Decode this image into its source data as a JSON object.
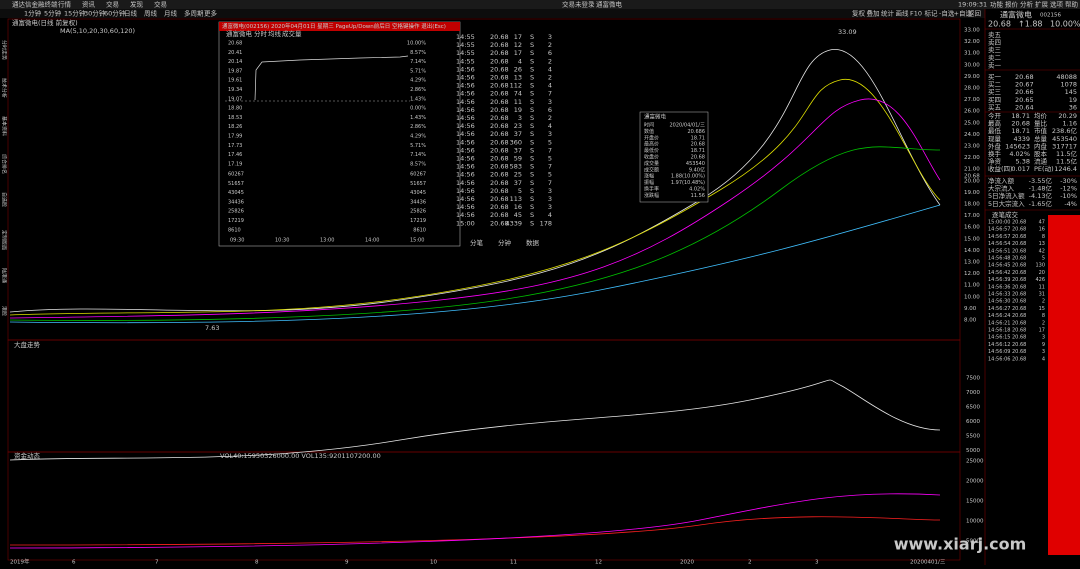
{
  "top_bar": {
    "app": "通达信金融终端",
    "menus": [
      "行情",
      "资讯",
      "交易",
      "发现",
      "交易"
    ],
    "status": "交易未登录",
    "stock": "通富微电",
    "clock": "19:09:31",
    "right_menus": [
      "功能",
      "报价",
      "分析",
      "扩展",
      "选项",
      "帮助"
    ]
  },
  "toolbar": {
    "periods": [
      "1分钟",
      "5分钟",
      "15分钟",
      "30分钟",
      "60分钟",
      "日线",
      "周线",
      "月线",
      "多周期",
      "更多"
    ],
    "right": [
      "复权",
      "叠加",
      "统计",
      "画线",
      "F10",
      "标记",
      "-自选",
      "+自选",
      "返回"
    ]
  },
  "sidebar": [
    "分时走势",
    "技术分析",
    "基本资料",
    "综合排名",
    "自选股",
    "定制版面",
    "陆港通",
    "港股"
  ],
  "chart": {
    "stock_line": "通富微电(日线 前复权)",
    "ma_line": "MA(5,10,20,30,60,120)",
    "high_mark": "33.09",
    "low_mark": "7.63",
    "y_ticks": [
      "33.00",
      "32.00",
      "31.00",
      "30.00",
      "29.00",
      "28.00",
      "27.00",
      "26.00",
      "25.00",
      "24.00",
      "23.00",
      "22.00",
      "21.00",
      "20.00",
      "19.00",
      "18.00",
      "17.00",
      "16.00",
      "15.00",
      "14.00",
      "13.00",
      "12.00",
      "11.00",
      "10.00",
      "9.00",
      "8.00"
    ],
    "last_price": "20.68",
    "index_title": "大盘走势",
    "index_ticks": [
      "7500",
      "7000",
      "6500",
      "6000",
      "5500",
      "5000"
    ],
    "volume_title": "资金动态",
    "volume_line": "VOL40:15950326000.00 VOL135:9201107200.00",
    "volume_ticks": [
      "25000",
      "20000",
      "15000",
      "10000",
      "5000"
    ],
    "dates": [
      "2019年",
      "6",
      "7",
      "8",
      "9",
      "10",
      "11",
      "12",
      "2020",
      "2",
      "3",
      "20200401/三"
    ]
  },
  "popup": {
    "title": "通富微电(002156) 2020年04月01日 星期三 PageUp/Down前后日 空格键操作 退出(Esc)",
    "stock": "通富微电",
    "tabs_left": [
      "分时",
      "均线",
      "成交量"
    ],
    "price_ticks": [
      "20.68",
      "20.41",
      "20.14",
      "19.87",
      "19.61",
      "19.34",
      "19.07",
      "18.80",
      "18.53",
      "18.26",
      "17.99",
      "17.73",
      "17.46",
      "17.19"
    ],
    "pct_ticks": [
      "10.00%",
      "8.57%",
      "7.14%",
      "5.71%",
      "4.29%",
      "2.86%",
      "1.43%",
      "0.00%",
      "1.43%",
      "2.86%",
      "4.29%",
      "5.71%",
      "7.14%",
      "8.57%"
    ],
    "volume_ticks": [
      "60267",
      "51657",
      "43045",
      "34436",
      "25826",
      "17219",
      "8610"
    ],
    "times": [
      "09:30",
      "10:30",
      "13:00",
      "14:00",
      "15:00"
    ],
    "rows": [
      [
        "14:55",
        "20.68",
        "17",
        "S",
        "3"
      ],
      [
        "14:55",
        "20.68",
        "12",
        "S",
        "2"
      ],
      [
        "14:55",
        "20.68",
        "17",
        "S",
        "6"
      ],
      [
        "14:55",
        "20.68",
        "4",
        "S",
        "2"
      ],
      [
        "14:56",
        "20.68",
        "26",
        "S",
        "4"
      ],
      [
        "14:56",
        "20.68",
        "13",
        "S",
        "2"
      ],
      [
        "14:56",
        "20.68",
        "112",
        "S",
        "4"
      ],
      [
        "14:56",
        "20.68",
        "74",
        "S",
        "7"
      ],
      [
        "14:56",
        "20.68",
        "11",
        "S",
        "3"
      ],
      [
        "14:56",
        "20.68",
        "19",
        "S",
        "6"
      ],
      [
        "14:56",
        "20.68",
        "3",
        "S",
        "2"
      ],
      [
        "14:56",
        "20.68",
        "23",
        "S",
        "4"
      ],
      [
        "14:56",
        "20.68",
        "37",
        "S",
        "3"
      ],
      [
        "14:56",
        "20.68",
        "360",
        "S",
        "5"
      ],
      [
        "14:56",
        "20.68",
        "37",
        "S",
        "7"
      ],
      [
        "14:56",
        "20.68",
        "59",
        "S",
        "5"
      ],
      [
        "14:56",
        "20.68",
        "583",
        "S",
        "7"
      ],
      [
        "14:56",
        "20.68",
        "25",
        "S",
        "5"
      ],
      [
        "14:56",
        "20.68",
        "37",
        "S",
        "7"
      ],
      [
        "14:56",
        "20.68",
        "5",
        "S",
        "3"
      ],
      [
        "14:56",
        "20.68",
        "113",
        "S",
        "3"
      ],
      [
        "14:56",
        "20.68",
        "16",
        "S",
        "3"
      ],
      [
        "14:56",
        "20.68",
        "45",
        "S",
        "4"
      ],
      [
        "15:00",
        "20.68",
        "4339",
        "S",
        "178"
      ]
    ],
    "tabs": [
      "分笔",
      "分钟",
      "数据"
    ]
  },
  "info_box": {
    "title": "通富微电",
    "rows": [
      [
        "时间",
        "2020/04/01/三"
      ],
      [
        "数值",
        "20.686"
      ],
      [
        "开盘价",
        "18.71"
      ],
      [
        "最高价",
        "20.68"
      ],
      [
        "最低价",
        "18.71"
      ],
      [
        "收盘价",
        "20.68"
      ],
      [
        "成交量",
        "453540"
      ],
      [
        "成交额",
        "9.40亿"
      ],
      [
        "涨幅",
        "1.88(10.00%)"
      ],
      [
        "振幅",
        "1.97(10.48%)"
      ],
      [
        "换手率",
        "4.02%"
      ],
      [
        "涨跌幅",
        "11.56"
      ]
    ]
  },
  "quote": {
    "name": "通富微电",
    "code": "002156",
    "price": "20.68",
    "change": "↑1.88",
    "pct": "10.00%",
    "asks": [
      [
        "卖五",
        "",
        ""
      ],
      [
        "卖四",
        "",
        ""
      ],
      [
        "卖三",
        "",
        ""
      ],
      [
        "卖二",
        "",
        ""
      ],
      [
        "卖一",
        "",
        ""
      ]
    ],
    "bids": [
      [
        "买一",
        "20.68",
        "48088"
      ],
      [
        "买二",
        "20.67",
        "1078"
      ],
      [
        "买三",
        "20.66",
        "145"
      ],
      [
        "买四",
        "20.65",
        "19"
      ],
      [
        "买五",
        "20.64",
        "36"
      ]
    ],
    "stats": [
      [
        "今开",
        "18.71",
        "均价",
        "20.29"
      ],
      [
        "最高",
        "20.68",
        "量比",
        "1.16"
      ],
      [
        "最低",
        "18.71",
        "市值",
        "238.6亿"
      ],
      [
        "现量",
        "4339",
        "总量",
        "453540"
      ],
      [
        "外盘",
        "145623",
        "内盘",
        "317717"
      ],
      [
        "换手",
        "4.02%",
        "股本",
        "11.5亿"
      ],
      [
        "净资",
        "5.38",
        "流通",
        "11.5亿"
      ],
      [
        "收益(四)",
        "0.017",
        "PE(动)",
        "1246.4"
      ]
    ],
    "flows": [
      [
        "净流入额",
        "-3.55亿",
        "-30%"
      ],
      [
        "大宗流入",
        "-1.48亿",
        "-12%"
      ],
      [
        "5日净流入额",
        "-4.13亿",
        "-10%"
      ],
      [
        "5日大宗流入",
        "-1.65亿",
        "-4%"
      ]
    ]
  },
  "ticks": {
    "title": "逐笔成交",
    "rows": [
      [
        "15:00:00",
        "20.68",
        "47"
      ],
      [
        "14:56:57",
        "20.68",
        "16"
      ],
      [
        "14:56:57",
        "20.68",
        "8"
      ],
      [
        "14:56:54",
        "20.68",
        "13"
      ],
      [
        "14:56:51",
        "20.68",
        "42"
      ],
      [
        "14:56:48",
        "20.68",
        "5"
      ],
      [
        "14:56:45",
        "20.68",
        "130"
      ],
      [
        "14:56:42",
        "20.68",
        "20"
      ],
      [
        "14:56:39",
        "20.68",
        "426"
      ],
      [
        "14:56:36",
        "20.68",
        "11"
      ],
      [
        "14:56:33",
        "20.68",
        "31"
      ],
      [
        "14:56:30",
        "20.68",
        "2"
      ],
      [
        "14:56:27",
        "20.68",
        "15"
      ],
      [
        "14:56:24",
        "20.68",
        "8"
      ],
      [
        "14:56:21",
        "20.68",
        "2"
      ],
      [
        "14:56:18",
        "20.68",
        "17"
      ],
      [
        "14:56:15",
        "20.68",
        "3"
      ],
      [
        "14:56:12",
        "20.68",
        "9"
      ],
      [
        "14:56:09",
        "20.68",
        "3"
      ],
      [
        "14:56:06",
        "20.68",
        "4"
      ]
    ]
  },
  "watermark": "www.xiarj.com"
}
